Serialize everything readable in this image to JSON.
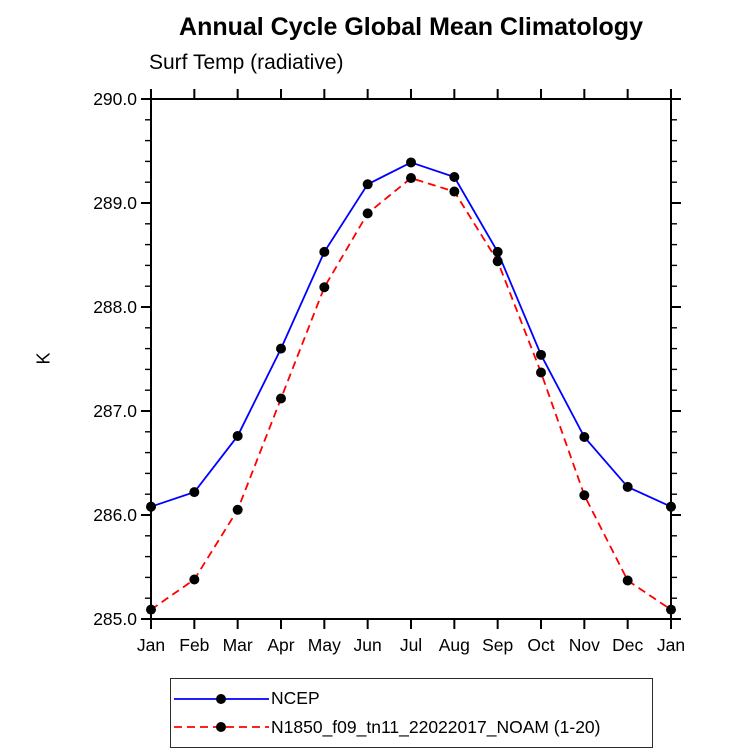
{
  "chart_data": {
    "type": "line",
    "title": "Annual Cycle Global Mean Climatology",
    "subtitle": "Surf Temp (radiative)",
    "ylabel": "K",
    "xlabel": "",
    "categories": [
      "Jan",
      "Feb",
      "Mar",
      "Apr",
      "May",
      "Jun",
      "Jul",
      "Aug",
      "Sep",
      "Oct",
      "Nov",
      "Dec",
      "Jan"
    ],
    "ylim": [
      285.0,
      290.0
    ],
    "ytick_major": 1.0,
    "ytick_minor": 0.2,
    "ytick_labels": [
      "290.0",
      "289.0",
      "288.0",
      "287.0",
      "286.0",
      "285.0"
    ],
    "grid": false,
    "legend_position": "bottom-boxed",
    "series": [
      {
        "name": "NCEP",
        "color": "#0000ff",
        "line_style": "solid",
        "marker": "filled-circle",
        "marker_color": "#000000",
        "values": [
          286.08,
          286.22,
          286.76,
          287.6,
          288.53,
          289.18,
          289.39,
          289.25,
          288.53,
          287.54,
          286.75,
          286.27,
          286.08
        ]
      },
      {
        "name": "N1850_f09_tn11_22022017_NOAM (1-20)",
        "color": "#ff0000",
        "line_style": "dashed",
        "marker": "filled-circle",
        "marker_color": "#000000",
        "values": [
          285.09,
          285.38,
          286.05,
          287.12,
          288.19,
          288.9,
          289.24,
          289.11,
          288.44,
          287.37,
          286.19,
          285.37,
          285.09
        ]
      }
    ]
  }
}
